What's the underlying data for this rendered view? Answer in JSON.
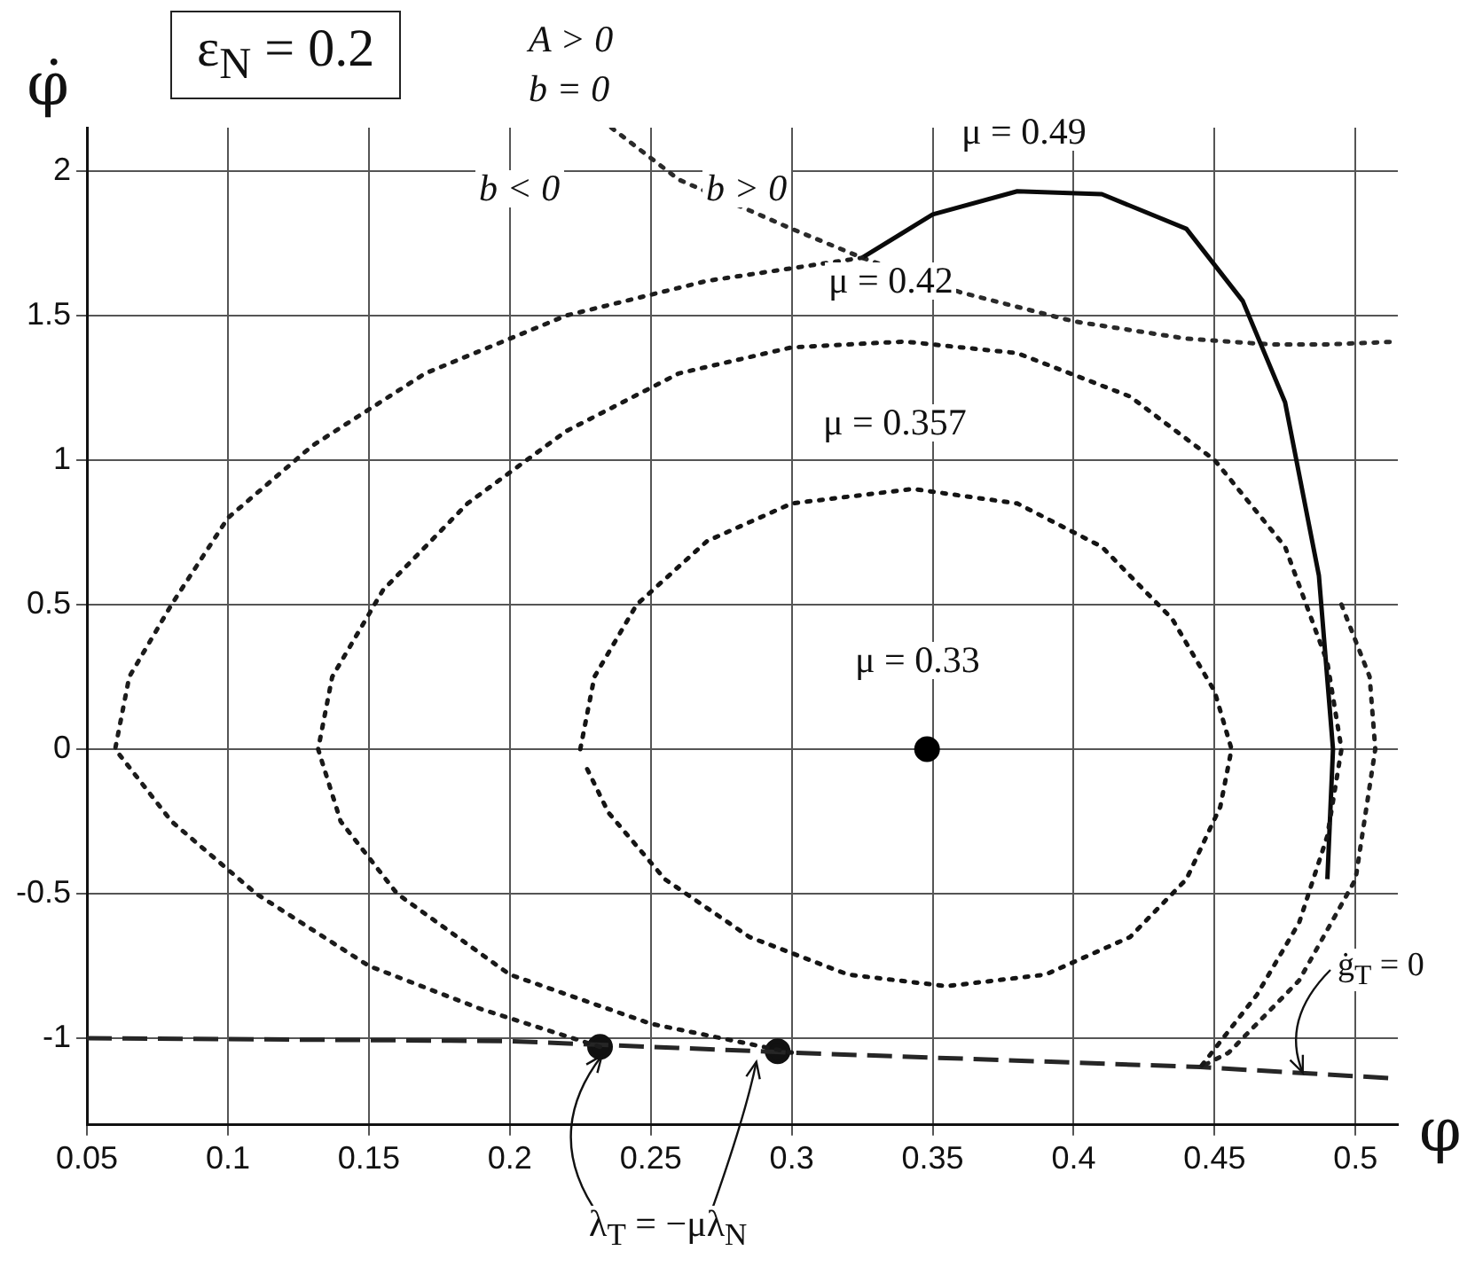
{
  "chart_data": {
    "type": "line",
    "xlabel": "φ",
    "ylabel": "φ̇",
    "xlim": [
      0.05,
      0.515
    ],
    "ylim": [
      -1.3,
      2.15
    ],
    "xticks": [
      0.05,
      0.1,
      0.15,
      0.2,
      0.25,
      0.3,
      0.35,
      0.4,
      0.45,
      0.5
    ],
    "yticks": [
      -1,
      -0.5,
      0,
      0.5,
      1,
      1.5,
      2
    ],
    "grid": true,
    "series": [
      {
        "line_style": "dotted",
        "color": "#141414",
        "x": [
          0.225,
          0.23,
          0.245,
          0.27,
          0.3,
          0.343,
          0.38,
          0.41,
          0.435,
          0.45,
          0.456,
          0.452,
          0.44,
          0.42,
          0.39,
          0.355,
          0.32,
          0.285,
          0.255,
          0.235,
          0.227
        ],
        "values": [
          0,
          0.25,
          0.5,
          0.72,
          0.85,
          0.9,
          0.85,
          0.7,
          0.45,
          0.2,
          0,
          -0.2,
          -0.45,
          -0.65,
          -0.78,
          -0.82,
          -0.78,
          -0.65,
          -0.45,
          -0.22,
          -0.06
        ]
      },
      {
        "line_style": "dotted",
        "color": "#181818",
        "x": [
          0.3,
          0.25,
          0.2,
          0.16,
          0.14,
          0.132,
          0.137,
          0.155,
          0.185,
          0.22,
          0.26,
          0.3,
          0.34,
          0.38,
          0.42,
          0.45,
          0.475,
          0.49,
          0.495,
          0.49,
          0.48,
          0.465,
          0.445
        ],
        "values": [
          -1.05,
          -0.95,
          -0.78,
          -0.5,
          -0.25,
          0,
          0.25,
          0.55,
          0.85,
          1.1,
          1.3,
          1.39,
          1.41,
          1.37,
          1.22,
          1.0,
          0.7,
          0.3,
          0,
          -0.3,
          -0.6,
          -0.85,
          -1.1
        ]
      },
      {
        "line_style": "dotted",
        "color": "#1c1c1c",
        "x": [
          0.232,
          0.19,
          0.15,
          0.11,
          0.08,
          0.06,
          0.065,
          0.08,
          0.1,
          0.13,
          0.17,
          0.22,
          0.27,
          0.325
        ],
        "values": [
          -1.03,
          -0.9,
          -0.75,
          -0.5,
          -0.25,
          0,
          0.25,
          0.5,
          0.8,
          1.05,
          1.3,
          1.5,
          1.62,
          1.7
        ]
      },
      {
        "line_style": "solid",
        "color": "#0a0a0a",
        "x": [
          0.325,
          0.35,
          0.38,
          0.41,
          0.44,
          0.46,
          0.475,
          0.487,
          0.492,
          0.49
        ],
        "values": [
          1.7,
          1.85,
          1.93,
          1.92,
          1.8,
          1.55,
          1.2,
          0.6,
          0,
          -0.45
        ]
      },
      {
        "line_style": "dotted",
        "color": "#202020",
        "x": [
          0.495,
          0.505,
          0.507,
          0.5,
          0.48,
          0.455,
          0.445
        ],
        "values": [
          0.5,
          0.25,
          0,
          -0.45,
          -0.8,
          -1.05,
          -1.1
        ]
      },
      {
        "line_style": "dotted",
        "color": "#2a2a2a",
        "x": [
          0.236,
          0.26,
          0.3,
          0.325,
          0.36,
          0.4,
          0.44,
          0.47,
          0.49,
          0.515
        ],
        "values": [
          2.15,
          1.97,
          1.8,
          1.7,
          1.58,
          1.48,
          1.42,
          1.4,
          1.4,
          1.41
        ]
      },
      {
        "line_style": "dashed",
        "color": "#262626",
        "x": [
          0.05,
          0.2,
          0.3,
          0.445,
          0.515
        ],
        "values": [
          -1,
          -1.01,
          -1.05,
          -1.1,
          -1.14
        ]
      },
      {
        "type": "scatter",
        "marker": "circle",
        "color": "#111111",
        "x": [
          0.232,
          0.295
        ],
        "values": [
          -1.03,
          -1.045
        ]
      },
      {
        "type": "scatter",
        "marker": "circle",
        "color": "#000000",
        "x": [
          0.348
        ],
        "values": [
          0
        ]
      }
    ],
    "annotations": [
      "ε$_{N}$ = 0.2",
      "A > 0",
      "b = 0",
      "b < 0",
      "b > 0",
      "μ = 0.49",
      "μ = 0.42",
      "μ = 0.357",
      "μ = 0.33",
      {
        "text": "λ$_{T}$ = −μλ$_{N}$",
        "x": 0.232,
        "y": -1.03
      },
      {
        "text": "ġ$_{T}$ = 0",
        "x": 0.48,
        "y": -1.125
      }
    ]
  }
}
